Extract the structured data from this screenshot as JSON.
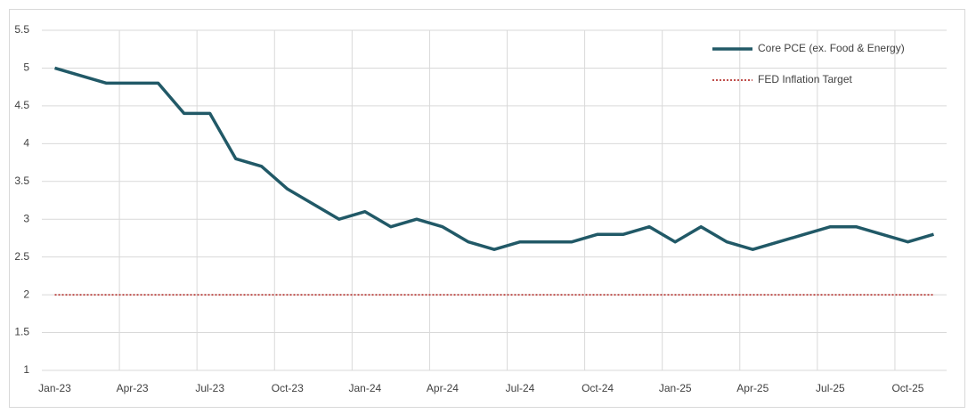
{
  "chart_data": {
    "type": "line",
    "categories": [
      "Jan-23",
      null,
      null,
      "Apr-23",
      null,
      null,
      "Jul-23",
      null,
      null,
      "Oct-23",
      null,
      null,
      "Jan-24",
      null,
      null,
      "Apr-24",
      null,
      null,
      "Jul-24",
      null,
      null,
      "Oct-24",
      null,
      null,
      "Jan-25",
      null,
      null,
      "Apr-25",
      null,
      null,
      "Jul-25",
      null,
      null,
      "Oct-25",
      null
    ],
    "series": [
      {
        "name": "Core PCE (ex. Food & Energy)",
        "color": "#215967",
        "style": "solid",
        "values": [
          5.0,
          4.9,
          4.8,
          4.8,
          4.8,
          4.4,
          4.4,
          3.8,
          3.7,
          3.4,
          3.2,
          3.0,
          3.1,
          2.9,
          3.0,
          2.9,
          2.7,
          2.6,
          2.7,
          2.7,
          2.7,
          2.8,
          2.8,
          2.9,
          2.7,
          2.9,
          2.7,
          2.6,
          2.7,
          2.8,
          2.9,
          2.9,
          2.8,
          2.7,
          2.8
        ]
      },
      {
        "name": "FED Inflation Target",
        "color": "#c0504d",
        "style": "dotted",
        "values": [
          2,
          2,
          2,
          2,
          2,
          2,
          2,
          2,
          2,
          2,
          2,
          2,
          2,
          2,
          2,
          2,
          2,
          2,
          2,
          2,
          2,
          2,
          2,
          2,
          2,
          2,
          2,
          2,
          2,
          2,
          2,
          2,
          2,
          2,
          2
        ]
      }
    ],
    "ylim": [
      1,
      5.5
    ],
    "yticks": [
      1,
      1.5,
      2,
      2.5,
      3,
      3.5,
      4,
      4.5,
      5,
      5.5
    ],
    "grid": true,
    "legend": "top-right"
  }
}
